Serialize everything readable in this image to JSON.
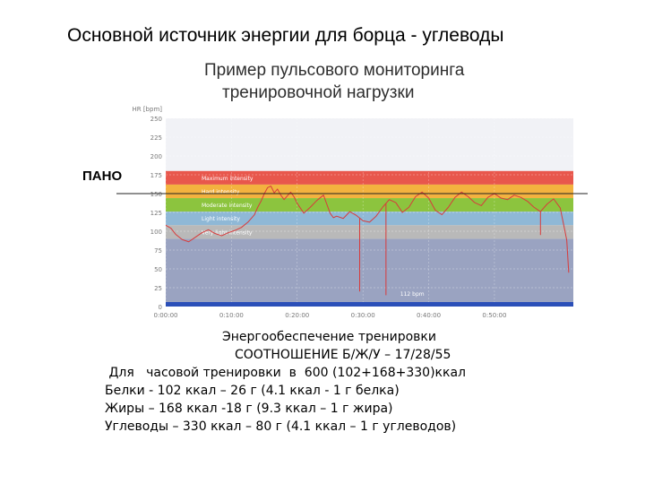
{
  "page": {
    "title": "Основной источник энергии для борца - углеводы",
    "subtitle_line1": "Пример пульсового мониторинга",
    "subtitle_line2": "тренировочной нагрузки",
    "pano_label": "ПАНО"
  },
  "chart_data": {
    "type": "line",
    "ylabel": "HR [bpm]",
    "ylim": [
      0,
      250
    ],
    "y_ticks": [
      0,
      25,
      50,
      75,
      100,
      125,
      150,
      175,
      200,
      225,
      250
    ],
    "x_ticks": [
      "0:00:00",
      "0:10:00",
      "0:20:00",
      "0:30:00",
      "0:40:00",
      "0:50:00"
    ],
    "xlim_minutes": [
      0,
      62
    ],
    "zones": [
      {
        "name": "Maximum intensity",
        "from": 162,
        "to": 180,
        "color": "#e8574c"
      },
      {
        "name": "Hard intensity",
        "from": 144,
        "to": 162,
        "color": "#f3b23f"
      },
      {
        "name": "Moderate intensity",
        "from": 126,
        "to": 144,
        "color": "#8cc43e"
      },
      {
        "name": "Light intensity",
        "from": 108,
        "to": 126,
        "color": "#8fb8d6"
      },
      {
        "name": "Very light intensity",
        "from": 90,
        "to": 108,
        "color": "#b9b9b9"
      }
    ],
    "lower_region_color": "#9aa3c1",
    "pano_line_bpm": 150,
    "annotation": "112 bpm",
    "series": [
      {
        "color": "#d83b3b",
        "x": [
          0,
          0.8,
          1.5,
          2.5,
          3.5,
          4.5,
          5.5,
          6.5,
          7.5,
          8.5,
          9.5,
          10.5,
          11.5,
          12.5,
          13.5,
          14,
          14.5,
          15,
          15.5,
          16,
          16.5,
          17,
          17.5,
          18,
          19,
          19.5,
          20,
          21,
          22,
          23,
          24,
          24.5,
          25,
          25.5,
          26,
          27,
          28,
          29,
          30,
          31,
          32,
          33,
          34,
          35,
          36,
          37,
          38,
          39,
          40,
          41,
          42,
          43,
          44,
          45,
          46,
          47,
          48,
          49,
          50,
          51,
          52,
          53,
          54,
          55,
          56,
          57,
          58,
          59,
          60,
          60.5,
          61,
          61.3
        ],
        "y": [
          108,
          104,
          96,
          89,
          86,
          92,
          98,
          102,
          97,
          94,
          98,
          101,
          105,
          112,
          122,
          132,
          140,
          150,
          158,
          160,
          151,
          156,
          148,
          142,
          152,
          146,
          137,
          124,
          132,
          141,
          148,
          136,
          124,
          118,
          120,
          117,
          126,
          121,
          114,
          112,
          120,
          132,
          142,
          138,
          125,
          132,
          146,
          152,
          144,
          128,
          122,
          132,
          145,
          152,
          146,
          138,
          134,
          145,
          150,
          144,
          142,
          148,
          145,
          140,
          132,
          126,
          136,
          143,
          131,
          110,
          88,
          45
        ]
      }
    ],
    "spikes": [
      {
        "x": 29.5,
        "y": 20
      },
      {
        "x": 33.5,
        "y": 15
      },
      {
        "x": 57,
        "y": 95
      }
    ]
  },
  "text_block": {
    "line1": "Энергообеспечение тренировки",
    "line2": "СООТНОШЕНИЕ Б/Ж/У – 17/28/55",
    "line3": " Для   часовой тренировки  в  600 (102+168+330)ккал",
    "line4": "Белки -  102 ккал – 26 г (4.1 ккал - 1 г белка)",
    "line5": "Жиры – 168 ккал -18 г (9.3 ккал – 1 г жира)",
    "line6": "Углеводы – 330 ккал – 80 г (4.1 ккал – 1 г углеводов)"
  }
}
